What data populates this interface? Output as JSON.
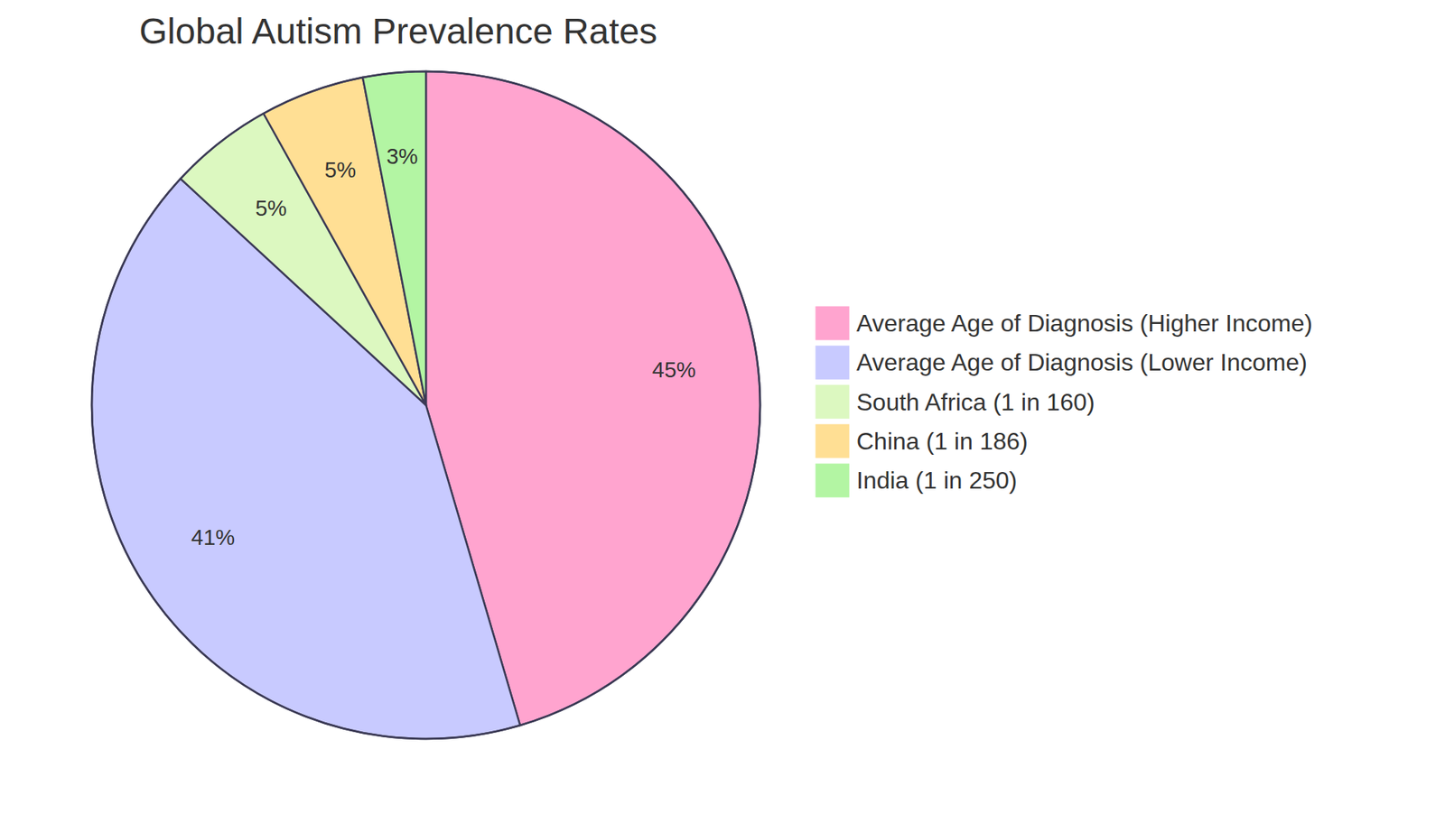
{
  "chart_data": {
    "type": "pie",
    "title": "Global Autism Prevalence Rates",
    "categories": [
      "Average Age of Diagnosis (Higher Income)",
      "Average Age of Diagnosis (Lower Income)",
      "South Africa (1 in 160)",
      "China (1 in 186)",
      "India (1 in 250)"
    ],
    "values": [
      45,
      41,
      5,
      5,
      3
    ],
    "value_labels": [
      "45%",
      "41%",
      "5%",
      "5%",
      "3%"
    ],
    "colors": [
      "#ffa4cf",
      "#c8caff",
      "#dcf8c0",
      "#ffdf94",
      "#b3f5a3"
    ],
    "data_labels": true,
    "legend": "right"
  }
}
